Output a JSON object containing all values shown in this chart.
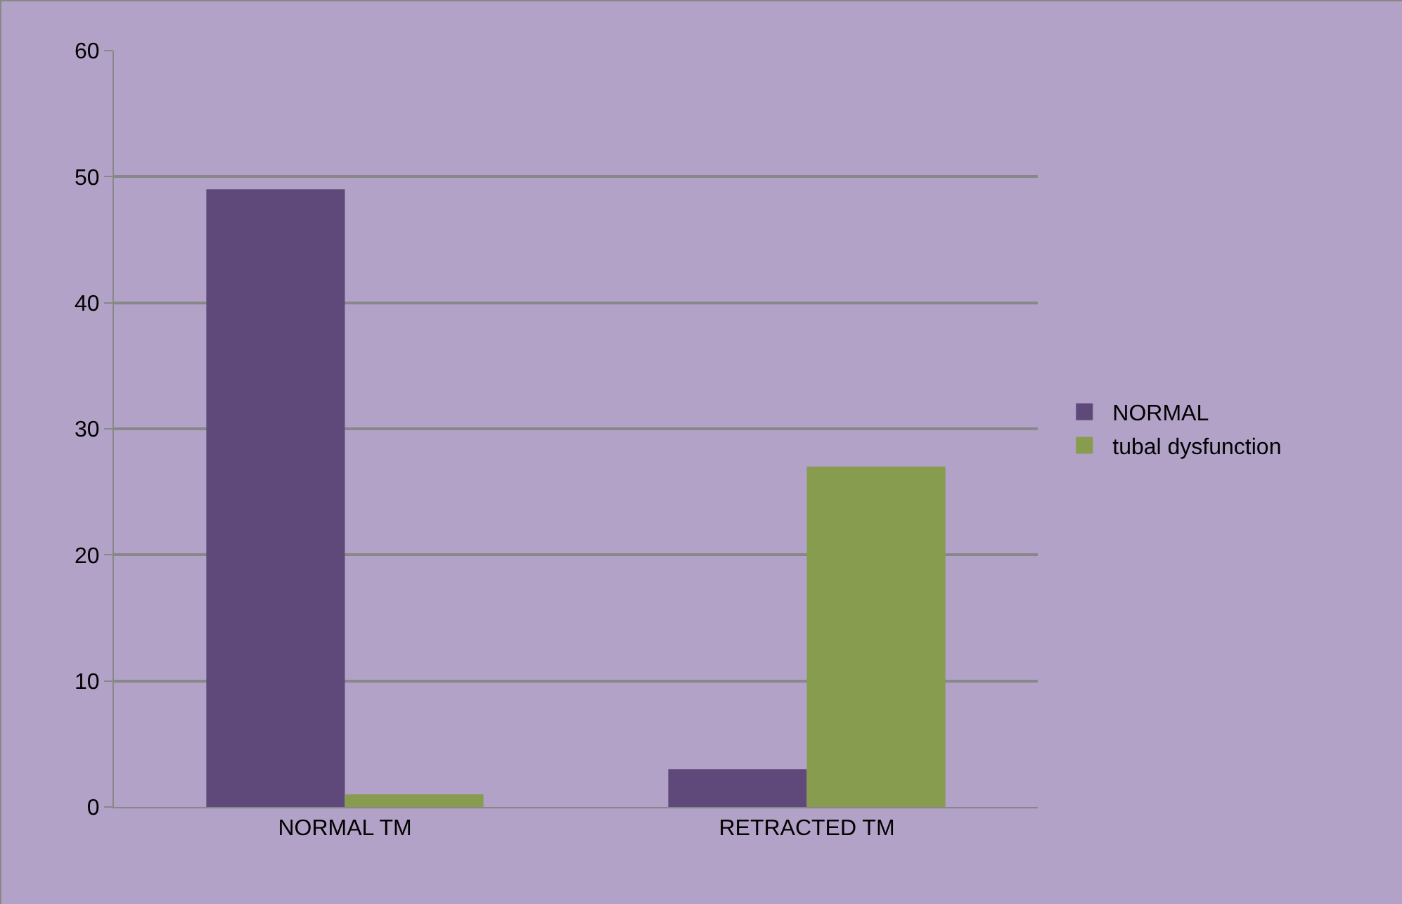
{
  "chart_data": {
    "type": "bar",
    "categories": [
      "NORMAL TM",
      "RETRACTED TM"
    ],
    "series": [
      {
        "name": "NORMAL",
        "color": "#5f497a",
        "values": [
          49,
          3
        ]
      },
      {
        "name": "tubal dysfunction",
        "color": "#879c4f",
        "values": [
          1,
          27
        ]
      }
    ],
    "ylim": [
      0,
      60
    ],
    "yticks": [
      0,
      10,
      20,
      30,
      40,
      50,
      60
    ],
    "grid": "y",
    "legend": "right"
  }
}
